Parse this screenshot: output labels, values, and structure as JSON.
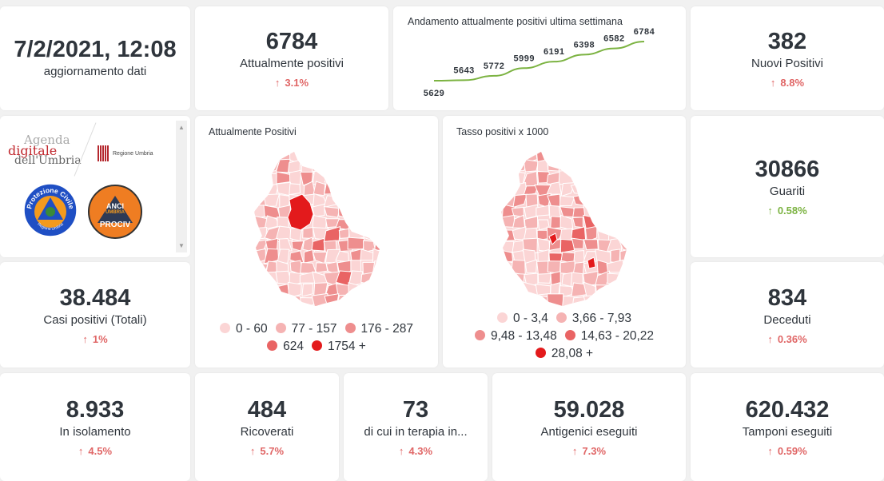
{
  "update": {
    "value": "7/2/2021, 12:08",
    "label": "aggiornamento dati"
  },
  "attualmente_positivi": {
    "value": "6784",
    "label": "Attualmente positivi",
    "change": "3.1%"
  },
  "trend": {
    "title": "Andamento attualmente positivi ultima settimana",
    "line_color": "#7cb342",
    "values": [
      5629,
      5643,
      5772,
      5999,
      6191,
      6398,
      6582,
      6784
    ]
  },
  "nuovi_positivi": {
    "value": "382",
    "label": "Nuovi Positivi",
    "change": "8.8%"
  },
  "logos": {
    "agenda_line1": "Agenda",
    "agenda_line2": "digitale",
    "agenda_line3": "dell'Umbria",
    "regione": "Regione Umbria",
    "protezione": "Protezione Civile",
    "protezione_sub": "Regione Umbria",
    "anci_1": "ANCI",
    "anci_2": "UMBRIA",
    "anci_3": "PROCIV"
  },
  "map_positivi": {
    "title": "Attualmente Positivi",
    "legend": [
      {
        "label": "0 - 60",
        "color": "#fbd5d5"
      },
      {
        "label": "77 - 157",
        "color": "#f5b3b3"
      },
      {
        "label": "176 - 287",
        "color": "#ee8e8e"
      },
      {
        "label": "624",
        "color": "#e96464"
      },
      {
        "label": "1754 +",
        "color": "#e31a1c"
      }
    ]
  },
  "map_tasso": {
    "title": "Tasso positivi x 1000",
    "legend": [
      {
        "label": "0 - 3,4",
        "color": "#fbd5d5"
      },
      {
        "label": "3,66 - 7,93",
        "color": "#f5b3b3"
      },
      {
        "label": "9,48 - 13,48",
        "color": "#ee8e8e"
      },
      {
        "label": "14,63 - 20,22",
        "color": "#e96464"
      },
      {
        "label": "28,08 +",
        "color": "#e31a1c"
      }
    ]
  },
  "guariti": {
    "value": "30866",
    "label": "Guariti",
    "change": "0.58%"
  },
  "casi_totali": {
    "value": "38.484",
    "label": "Casi positivi (Totali)",
    "change": "1%"
  },
  "deceduti": {
    "value": "834",
    "label": "Deceduti",
    "change": "0.36%"
  },
  "isolamento": {
    "value": "8.933",
    "label": "In isolamento",
    "change": "4.5%"
  },
  "ricoverati": {
    "value": "484",
    "label": "Ricoverati",
    "change": "5.7%"
  },
  "terapia": {
    "value": "73",
    "label": "di cui in terapia in...",
    "change": "4.3%"
  },
  "antigenici": {
    "value": "59.028",
    "label": "Antigenici eseguiti",
    "change": "7.3%"
  },
  "tamponi": {
    "value": "620.432",
    "label": "Tamponi eseguiti",
    "change": "0.59%"
  },
  "colors": {
    "increase_bad": "#e06666",
    "increase_good": "#7cb342",
    "background": "#f1f1f1"
  }
}
